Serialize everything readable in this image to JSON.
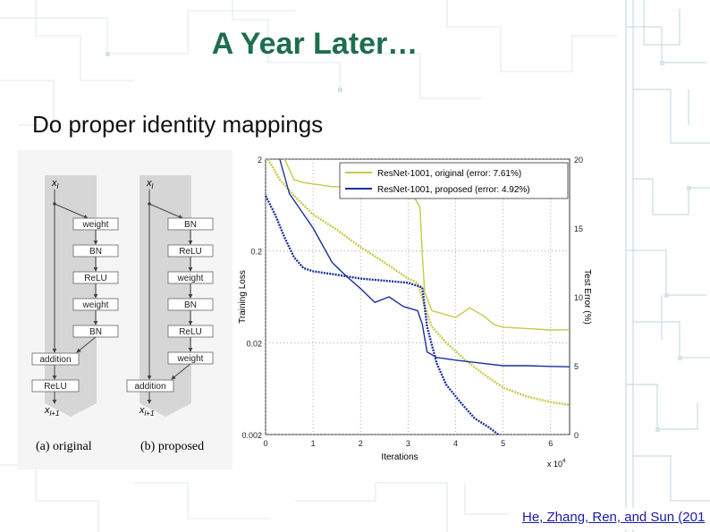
{
  "slide": {
    "title": "A Year Later…",
    "subtitle": "Do proper identity mappings",
    "citation": "He, Zhang, Ren, and Sun (201"
  },
  "diagram": {
    "original": {
      "caption": "(a) original",
      "input": "x",
      "input_sub": "l",
      "output": "x",
      "output_sub": "l+1",
      "blocks": [
        "weight",
        "BN",
        "ReLU",
        "weight",
        "BN"
      ],
      "addition": "addition",
      "after": "ReLU"
    },
    "proposed": {
      "caption": "(b) proposed",
      "input": "x",
      "input_sub": "l",
      "output": "x",
      "output_sub": "l+1",
      "blocks": [
        "BN",
        "ReLU",
        "weight",
        "BN",
        "ReLU",
        "weight"
      ],
      "addition": "addition"
    }
  },
  "chart_data": {
    "type": "line",
    "xlabel": "Iterations",
    "x_multiplier": "x 10",
    "x_multiplier_exp": "4",
    "ylabel_left": "Training Loss",
    "ylabel_right": "Test Error (%)",
    "x_ticks": [
      "0",
      "1",
      "2",
      "3",
      "4",
      "5",
      "6"
    ],
    "y_left_ticks": [
      "2",
      "0.2",
      "0.02",
      "0.002"
    ],
    "y_right_ticks": [
      "20",
      "15",
      "10",
      "5",
      "0"
    ],
    "xlim": [
      0,
      6.4
    ],
    "ylim_left_log": [
      0.002,
      2
    ],
    "ylim_right": [
      0,
      20
    ],
    "legend": [
      "ResNet-1001, original (error: 7.61%)",
      "ResNet-1001, proposed (error: 4.92%)"
    ],
    "legend_position": "top-right",
    "grid": "dotted",
    "colors": {
      "original": "#c8c84a",
      "proposed": "#1c2f9c"
    },
    "series": [
      {
        "name": "ResNet-1001, original (error: 7.61%)",
        "test_error_pct": {
          "x": [
            0.4,
            0.6,
            0.8,
            1.0,
            1.4,
            1.8,
            2.0,
            2.4,
            2.8,
            3.1,
            3.25,
            3.3,
            3.35,
            3.5,
            4.0,
            4.3,
            4.6,
            4.8,
            5.0,
            5.5,
            6.0,
            6.4
          ],
          "y": [
            20.0,
            18.5,
            18.3,
            18.2,
            18.0,
            18.0,
            17.8,
            17.6,
            17.5,
            17.4,
            16.5,
            13.0,
            10.3,
            9.0,
            8.5,
            9.2,
            8.6,
            8.0,
            7.8,
            7.7,
            7.6,
            7.61
          ]
        },
        "training_loss": {
          "x": [
            0.05,
            0.3,
            0.6,
            1.0,
            1.5,
            2.0,
            2.5,
            3.0,
            3.2,
            3.35,
            3.5,
            3.8,
            4.2,
            4.6,
            5.0,
            5.5,
            6.0,
            6.4
          ],
          "y": [
            2.0,
            1.2,
            0.8,
            0.5,
            0.34,
            0.22,
            0.15,
            0.1,
            0.09,
            0.05,
            0.03,
            0.02,
            0.013,
            0.009,
            0.0065,
            0.0052,
            0.0045,
            0.0042
          ]
        }
      },
      {
        "name": "ResNet-1001, proposed (error: 4.92%)",
        "test_error_pct": {
          "x": [
            0.3,
            0.5,
            0.8,
            1.0,
            1.4,
            1.7,
            2.0,
            2.3,
            2.6,
            2.9,
            3.2,
            3.3,
            3.4,
            3.6,
            4.0,
            4.5,
            5.0,
            5.5,
            6.0,
            6.4
          ],
          "y": [
            20.0,
            17.5,
            16.0,
            15.0,
            12.5,
            11.5,
            10.6,
            9.6,
            10.0,
            9.3,
            9.0,
            8.0,
            6.0,
            5.6,
            5.4,
            5.2,
            5.0,
            5.0,
            4.95,
            4.92
          ]
        },
        "training_loss": {
          "x": [
            0.0,
            0.2,
            0.4,
            0.6,
            0.8,
            1.0,
            1.5,
            2.0,
            2.5,
            3.0,
            3.3,
            3.4,
            3.6,
            3.8,
            4.1,
            4.4,
            4.7,
            4.9
          ],
          "y": [
            0.8,
            0.5,
            0.28,
            0.17,
            0.13,
            0.12,
            0.11,
            0.1,
            0.095,
            0.09,
            0.08,
            0.03,
            0.012,
            0.007,
            0.0045,
            0.003,
            0.0024,
            0.002
          ]
        }
      }
    ]
  }
}
